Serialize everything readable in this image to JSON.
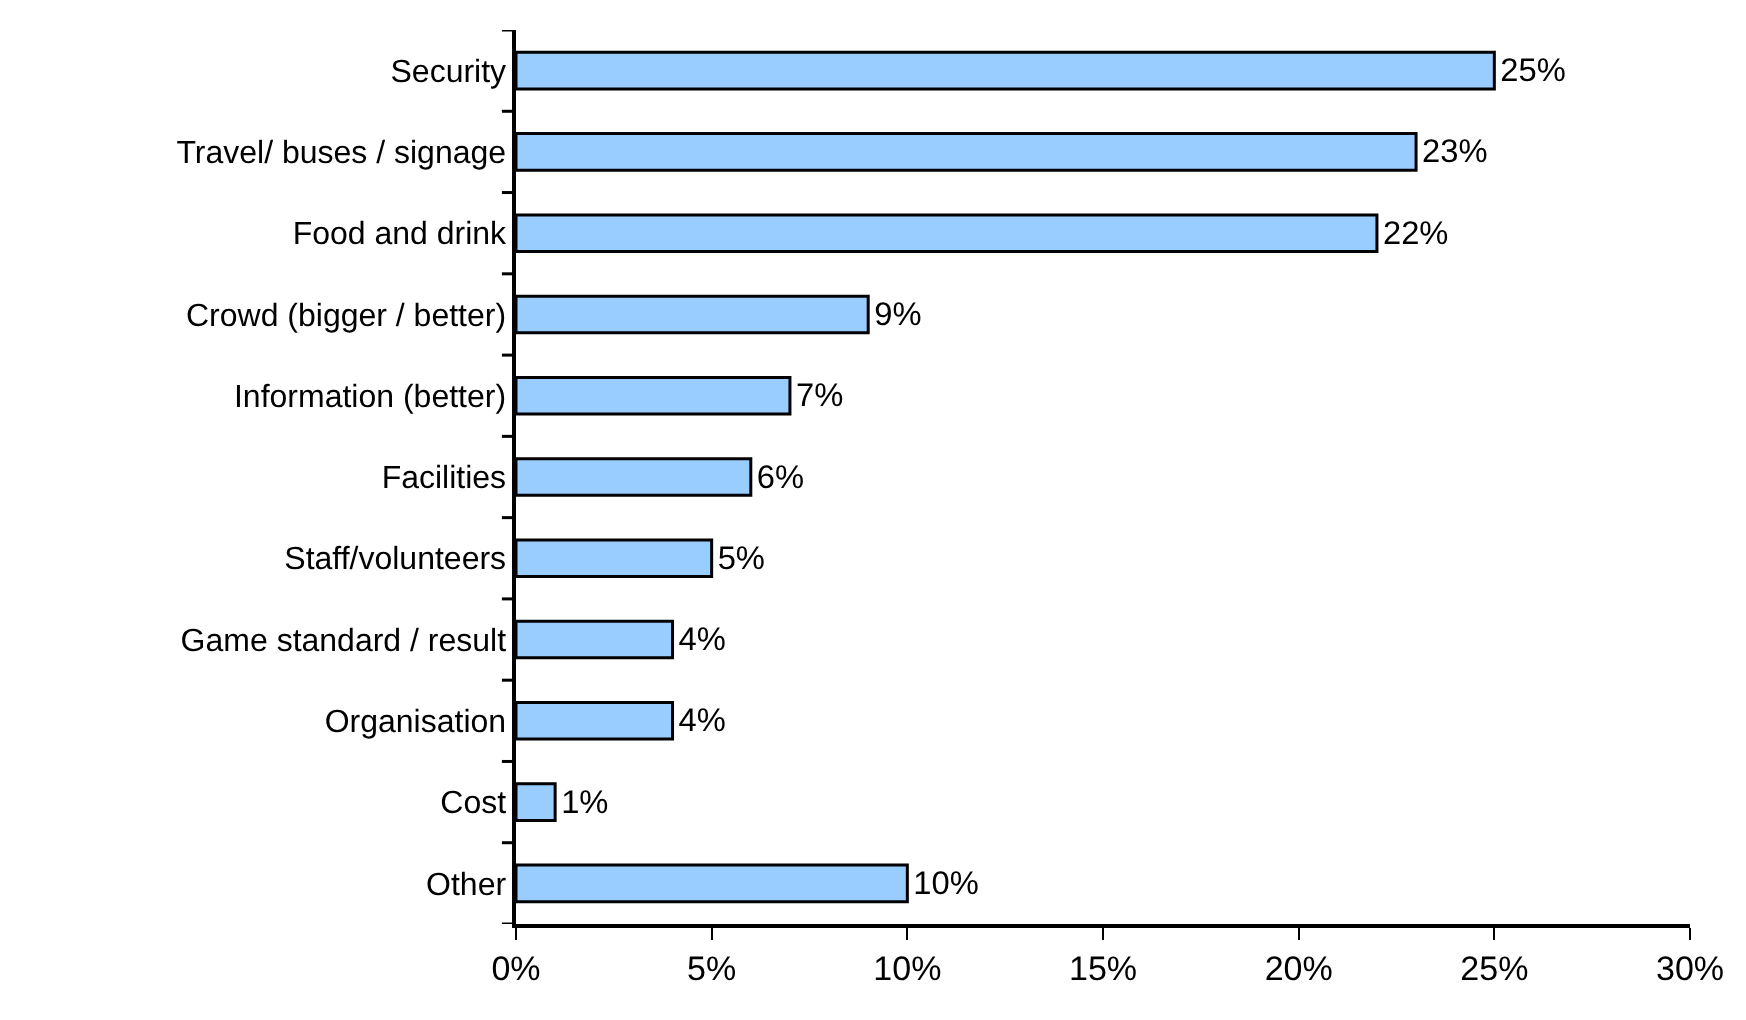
{
  "chart_data": {
    "type": "bar",
    "orientation": "horizontal",
    "categories": [
      "Security",
      "Travel/ buses / signage",
      "Food and drink",
      "Crowd (bigger / better)",
      "Information (better)",
      "Facilities",
      "Staff/volunteers",
      "Game standard / result",
      "Organisation",
      "Cost",
      "Other"
    ],
    "values": [
      25,
      23,
      22,
      9,
      7,
      6,
      5,
      4,
      4,
      1,
      10
    ],
    "value_labels": [
      "25%",
      "23%",
      "22%",
      "9%",
      "7%",
      "6%",
      "5%",
      "4%",
      "4%",
      "1%",
      "10%"
    ],
    "color": "#99ccff",
    "xlim": [
      0,
      30
    ],
    "xticks": [
      {
        "value": 0,
        "label": "0%"
      },
      {
        "value": 5,
        "label": "5%"
      },
      {
        "value": 10,
        "label": "10%"
      },
      {
        "value": 15,
        "label": "15%"
      },
      {
        "value": 20,
        "label": "20%"
      },
      {
        "value": 25,
        "label": "25%"
      },
      {
        "value": 30,
        "label": "30%"
      }
    ],
    "grid": false,
    "legend": false
  }
}
